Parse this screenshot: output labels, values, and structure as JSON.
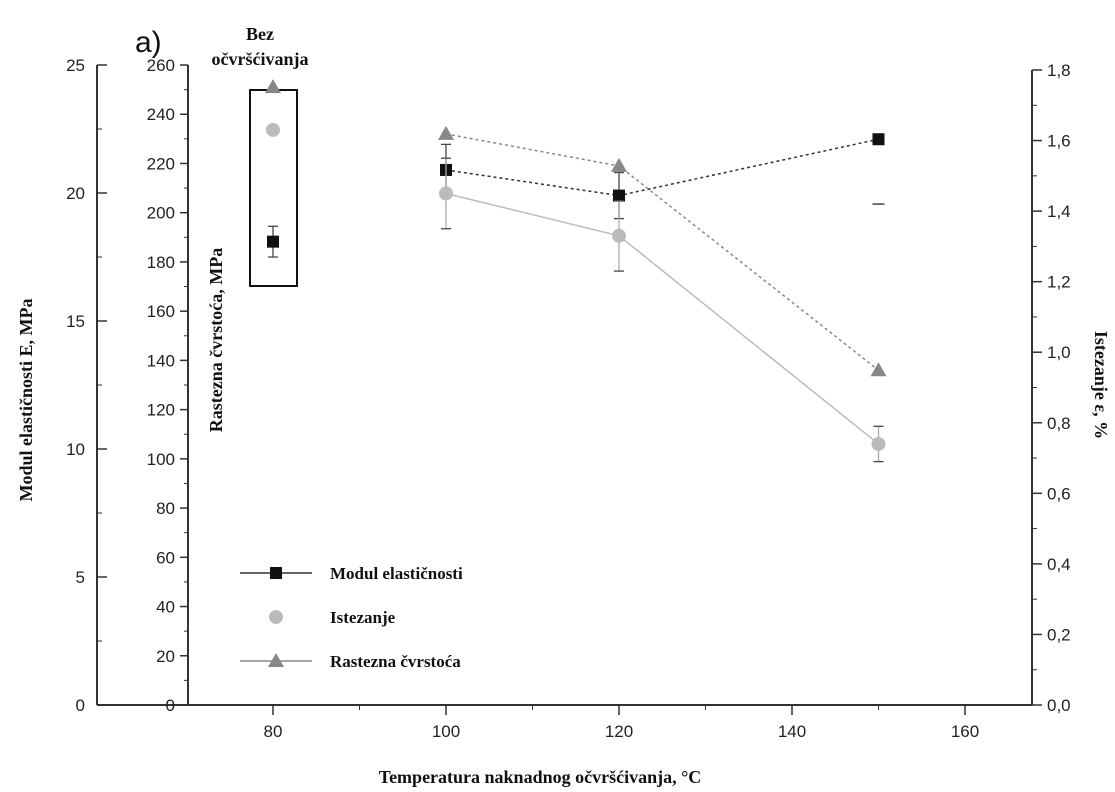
{
  "chart_data": {
    "type": "line",
    "panel_label": "a)",
    "annotation": "Bez očvršćivanja",
    "xlabel": "Temperatura naknadnog očvršćivanja, °C",
    "x_ticks": [
      "80",
      "100",
      "120",
      "140",
      "160"
    ],
    "xlim": [
      70,
      160
    ],
    "y_left_outer": {
      "label": "Modul elastičnosti E, MPa",
      "ticks": [
        "0",
        "5",
        "10",
        "15",
        "20",
        "25"
      ],
      "lim": [
        0,
        25
      ]
    },
    "y_left_inner": {
      "label": "Rastezna čvrstoća, MPa",
      "ticks": [
        "0",
        "20",
        "40",
        "60",
        "80",
        "100",
        "120",
        "140",
        "160",
        "180",
        "200",
        "220",
        "240",
        "260"
      ],
      "lim": [
        0,
        260
      ]
    },
    "y_right": {
      "label": "Istezanje ε, %",
      "ticks": [
        "0,0",
        "0,2",
        "0,4",
        "0,6",
        "0,8",
        "1,0",
        "1,2",
        "1,4",
        "1,6",
        "1,8"
      ],
      "lim": [
        0,
        1.8
      ]
    },
    "x_order": [
      80,
      100,
      120,
      150
    ],
    "series": [
      {
        "name": "Modul elastičnosti",
        "axis": "left_outer",
        "marker": "square",
        "color": "#111111",
        "line_color": "#333333",
        "dash": "3,3",
        "x": [
          80,
          100,
          120,
          150
        ],
        "y": [
          18.1,
          20.9,
          19.9,
          22.1
        ],
        "err": [
          0.6,
          1.0,
          0.9,
          0
        ],
        "connect_from": 100
      },
      {
        "name": "Istezanje",
        "axis": "right",
        "marker": "circle",
        "color": "#bbbbbb",
        "line_color": "#bbbbbb",
        "dash": "",
        "x": [
          80,
          100,
          120,
          150
        ],
        "y": [
          1.63,
          1.45,
          1.33,
          0.74
        ],
        "err": [
          0,
          0.1,
          0.1,
          0.05
        ],
        "connect_from": 100
      },
      {
        "name": "Rastezna čvrstoća",
        "axis": "left_inner",
        "marker": "triangle",
        "color": "#888888",
        "line_color": "#888888",
        "dash": "3,3",
        "x": [
          80,
          100,
          120,
          150
        ],
        "y": [
          251,
          232,
          219,
          136
        ],
        "err": [
          0,
          0,
          0,
          0
        ],
        "connect_from": 100
      }
    ],
    "legend_position": "lower-left"
  }
}
